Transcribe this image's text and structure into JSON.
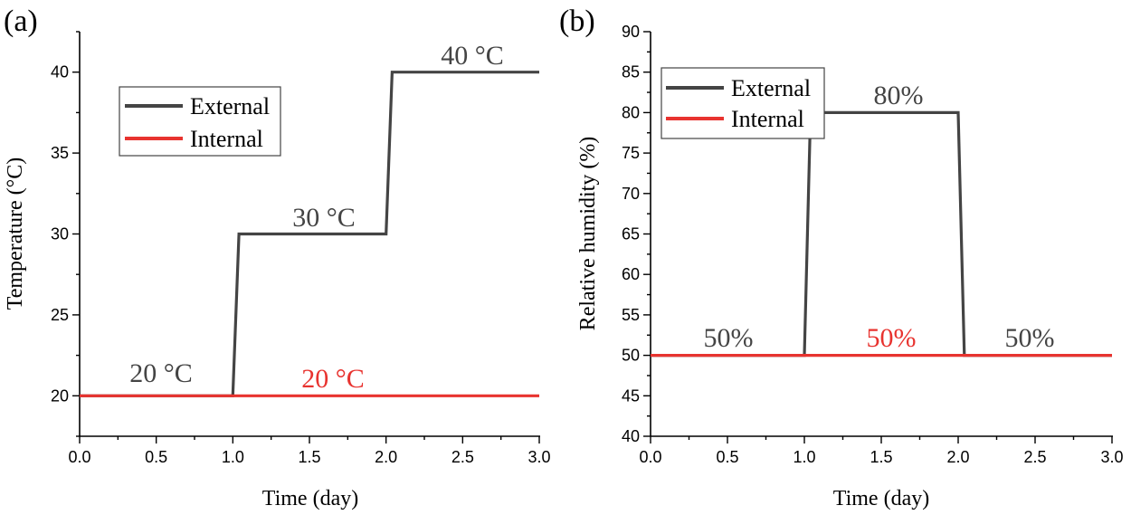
{
  "colors": {
    "external": "#444444",
    "internal": "#e8332f"
  },
  "chart_data": [
    {
      "type": "line",
      "panel_label": "(a)",
      "xlabel": "Time (day)",
      "ylabel": "Temperature (°C)",
      "xlim": [
        0,
        3
      ],
      "ylim": [
        17.5,
        42.5
      ],
      "xticks": [
        "0.0",
        "0.5",
        "1.0",
        "1.5",
        "2.0",
        "2.5",
        "3.0"
      ],
      "yticks": [
        "20",
        "25",
        "30",
        "35",
        "40"
      ],
      "series": [
        {
          "name": "External",
          "x": [
            0,
            1,
            1.04,
            2,
            2.04,
            3
          ],
          "y": [
            20,
            20,
            30,
            30,
            40,
            40
          ]
        },
        {
          "name": "Internal",
          "x": [
            0,
            3
          ],
          "y": [
            20,
            20
          ]
        }
      ],
      "annotations": [
        {
          "text": "20 °C",
          "series": "External"
        },
        {
          "text": "20 °C",
          "series": "Internal"
        },
        {
          "text": "30 °C",
          "series": "External"
        },
        {
          "text": "40 °C",
          "series": "External"
        }
      ],
      "legend": [
        "External",
        "Internal"
      ]
    },
    {
      "type": "line",
      "panel_label": "(b)",
      "xlabel": "Time (day)",
      "ylabel": "Relative humidity (%)",
      "xlim": [
        0,
        3
      ],
      "ylim": [
        40,
        90
      ],
      "xticks": [
        "0.0",
        "0.5",
        "1.0",
        "1.5",
        "2.0",
        "2.5",
        "3.0"
      ],
      "yticks": [
        "40",
        "45",
        "50",
        "55",
        "60",
        "65",
        "70",
        "75",
        "80",
        "85",
        "90"
      ],
      "series": [
        {
          "name": "External",
          "x": [
            0,
            1,
            1.04,
            2,
            2.04,
            3
          ],
          "y": [
            50,
            50,
            80,
            80,
            50,
            50
          ]
        },
        {
          "name": "Internal",
          "x": [
            0,
            3
          ],
          "y": [
            50,
            50
          ]
        }
      ],
      "annotations": [
        {
          "text": "50%",
          "series": "External"
        },
        {
          "text": "50%",
          "series": "Internal"
        },
        {
          "text": "50%",
          "series": "External"
        },
        {
          "text": "80%",
          "series": "External"
        }
      ],
      "legend": [
        "External",
        "Internal"
      ]
    }
  ]
}
